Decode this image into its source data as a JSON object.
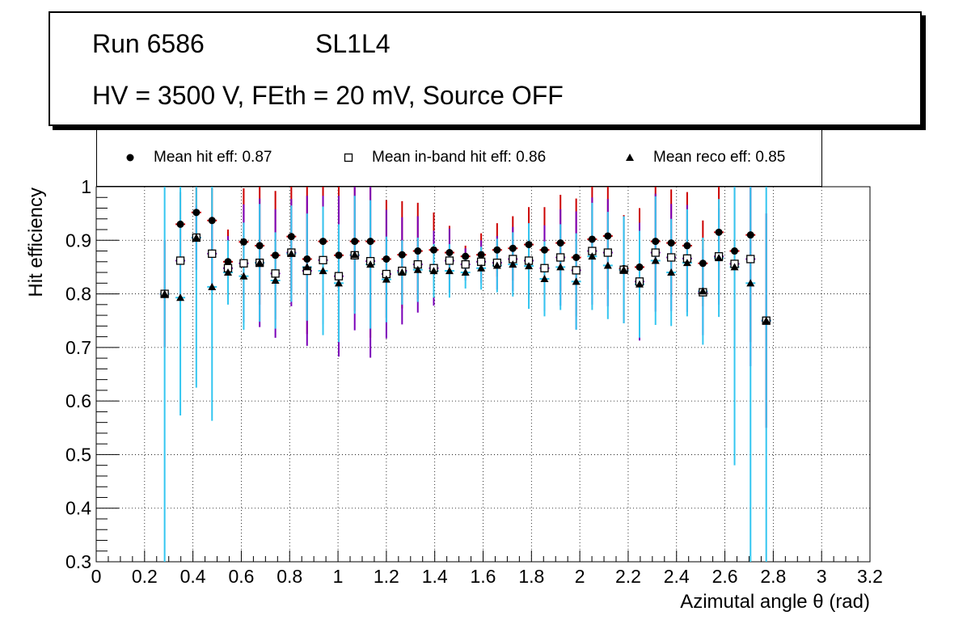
{
  "title": {
    "run": "Run 6586",
    "layer": "SL1L4",
    "conditions": "HV = 3500 V, FEth = 20 mV, Source OFF"
  },
  "legend": {
    "hit": "Mean hit  eff: 0.87",
    "inband": "Mean in-band hit eff: 0.86",
    "reco": "Mean reco eff: 0.85"
  },
  "colors": {
    "hit_err": "#cc0000",
    "inband_err": "#7a00b8",
    "reco_err": "#33c6f0",
    "grid": "#000000"
  },
  "chart_data": {
    "type": "scatter",
    "xlabel": "Azimutal angle θ (rad)",
    "ylabel": "Hit efficiency",
    "xlim": [
      0,
      3.2
    ],
    "ylim": [
      0.3,
      1.0
    ],
    "xticks": [
      "0",
      "0.2",
      "0.4",
      "0.6",
      "0.8",
      "1",
      "1.2",
      "1.4",
      "1.6",
      "1.8",
      "2",
      "2.2",
      "2.4",
      "2.6",
      "2.8",
      "3",
      "3.2"
    ],
    "yticks": [
      "0.3",
      "0.4",
      "0.5",
      "0.6",
      "0.7",
      "0.8",
      "0.9",
      "1"
    ],
    "grid": true,
    "bin_halfwidth": 0.02,
    "series": [
      {
        "name": "hit",
        "marker": "circle",
        "x": [
          0.283,
          0.348,
          0.414,
          0.479,
          0.545,
          0.61,
          0.676,
          0.741,
          0.807,
          0.872,
          0.938,
          1.003,
          1.069,
          1.134,
          1.2,
          1.265,
          1.33,
          1.396,
          1.461,
          1.527,
          1.592,
          1.658,
          1.723,
          1.789,
          1.854,
          1.92,
          1.985,
          2.051,
          2.116,
          2.182,
          2.247,
          2.313,
          2.378,
          2.444,
          2.509,
          2.575,
          2.64,
          2.706,
          2.771
        ],
        "y": [
          0.8,
          0.93,
          0.952,
          0.937,
          0.86,
          0.897,
          0.89,
          0.872,
          0.907,
          0.865,
          0.898,
          0.872,
          0.898,
          0.898,
          0.865,
          0.873,
          0.88,
          0.882,
          0.877,
          0.87,
          0.873,
          0.882,
          0.885,
          0.892,
          0.882,
          0.895,
          0.868,
          0.902,
          0.908,
          0.847,
          0.85,
          0.898,
          0.895,
          0.89,
          0.857,
          0.915,
          0.88,
          0.91,
          0.75
        ],
        "err": [
          0.1,
          0.06,
          0.05,
          0.06,
          0.06,
          0.1,
          0.11,
          0.12,
          0.1,
          0.14,
          0.11,
          0.15,
          0.13,
          0.18,
          0.11,
          0.1,
          0.09,
          0.07,
          0.05,
          0.02,
          0.04,
          0.05,
          0.06,
          0.07,
          0.08,
          0.09,
          0.11,
          0.1,
          0.1,
          0.1,
          0.11,
          0.11,
          0.1,
          0.1,
          0.08,
          0.09,
          0.15,
          0.2,
          0.2
        ]
      },
      {
        "name": "inband",
        "marker": "square",
        "x": [
          0.283,
          0.348,
          0.414,
          0.479,
          0.545,
          0.61,
          0.676,
          0.741,
          0.807,
          0.872,
          0.938,
          1.003,
          1.069,
          1.134,
          1.2,
          1.265,
          1.33,
          1.396,
          1.461,
          1.527,
          1.592,
          1.658,
          1.723,
          1.789,
          1.854,
          1.92,
          1.985,
          2.051,
          2.116,
          2.182,
          2.247,
          2.313,
          2.378,
          2.444,
          2.509,
          2.575,
          2.64,
          2.706,
          2.771
        ],
        "y": [
          0.8,
          0.862,
          0.905,
          0.875,
          0.848,
          0.857,
          0.858,
          0.838,
          0.877,
          0.843,
          0.863,
          0.833,
          0.872,
          0.861,
          0.837,
          0.843,
          0.855,
          0.848,
          0.862,
          0.855,
          0.86,
          0.858,
          0.865,
          0.862,
          0.848,
          0.868,
          0.844,
          0.88,
          0.877,
          0.845,
          0.823,
          0.877,
          0.868,
          0.866,
          0.803,
          0.87,
          0.856,
          0.865,
          0.75
        ],
        "err": [
          0.1,
          0.07,
          0.06,
          0.07,
          0.06,
          0.11,
          0.12,
          0.12,
          0.1,
          0.14,
          0.12,
          0.15,
          0.14,
          0.18,
          0.12,
          0.1,
          0.09,
          0.07,
          0.06,
          0.03,
          0.04,
          0.05,
          0.06,
          0.07,
          0.08,
          0.09,
          0.11,
          0.1,
          0.1,
          0.1,
          0.11,
          0.11,
          0.1,
          0.1,
          0.08,
          0.09,
          0.16,
          0.2,
          0.2
        ]
      },
      {
        "name": "reco",
        "marker": "triangle",
        "x": [
          0.283,
          0.348,
          0.414,
          0.479,
          0.545,
          0.61,
          0.676,
          0.741,
          0.807,
          0.872,
          0.938,
          1.003,
          1.069,
          1.134,
          1.2,
          1.265,
          1.33,
          1.396,
          1.461,
          1.527,
          1.592,
          1.658,
          1.723,
          1.789,
          1.854,
          1.92,
          1.985,
          2.051,
          2.116,
          2.182,
          2.247,
          2.313,
          2.378,
          2.444,
          2.509,
          2.575,
          2.64,
          2.706,
          2.771
        ],
        "y": [
          0.8,
          0.793,
          0.905,
          0.813,
          0.84,
          0.833,
          0.858,
          0.825,
          0.875,
          0.85,
          0.843,
          0.82,
          0.873,
          0.855,
          0.827,
          0.84,
          0.845,
          0.843,
          0.843,
          0.84,
          0.848,
          0.853,
          0.855,
          0.852,
          0.828,
          0.85,
          0.823,
          0.87,
          0.853,
          0.845,
          0.818,
          0.862,
          0.84,
          0.858,
          0.805,
          0.867,
          0.85,
          0.82,
          0.75
        ],
        "err": [
          0.5,
          0.22,
          0.28,
          0.25,
          0.06,
          0.1,
          0.11,
          0.09,
          0.09,
          0.1,
          0.12,
          0.11,
          0.11,
          0.12,
          0.08,
          0.06,
          0.06,
          0.05,
          0.05,
          0.03,
          0.04,
          0.05,
          0.06,
          0.08,
          0.07,
          0.08,
          0.09,
          0.1,
          0.1,
          0.1,
          0.1,
          0.12,
          0.1,
          0.1,
          0.1,
          0.11,
          0.37,
          0.55,
          0.55
        ]
      }
    ]
  }
}
